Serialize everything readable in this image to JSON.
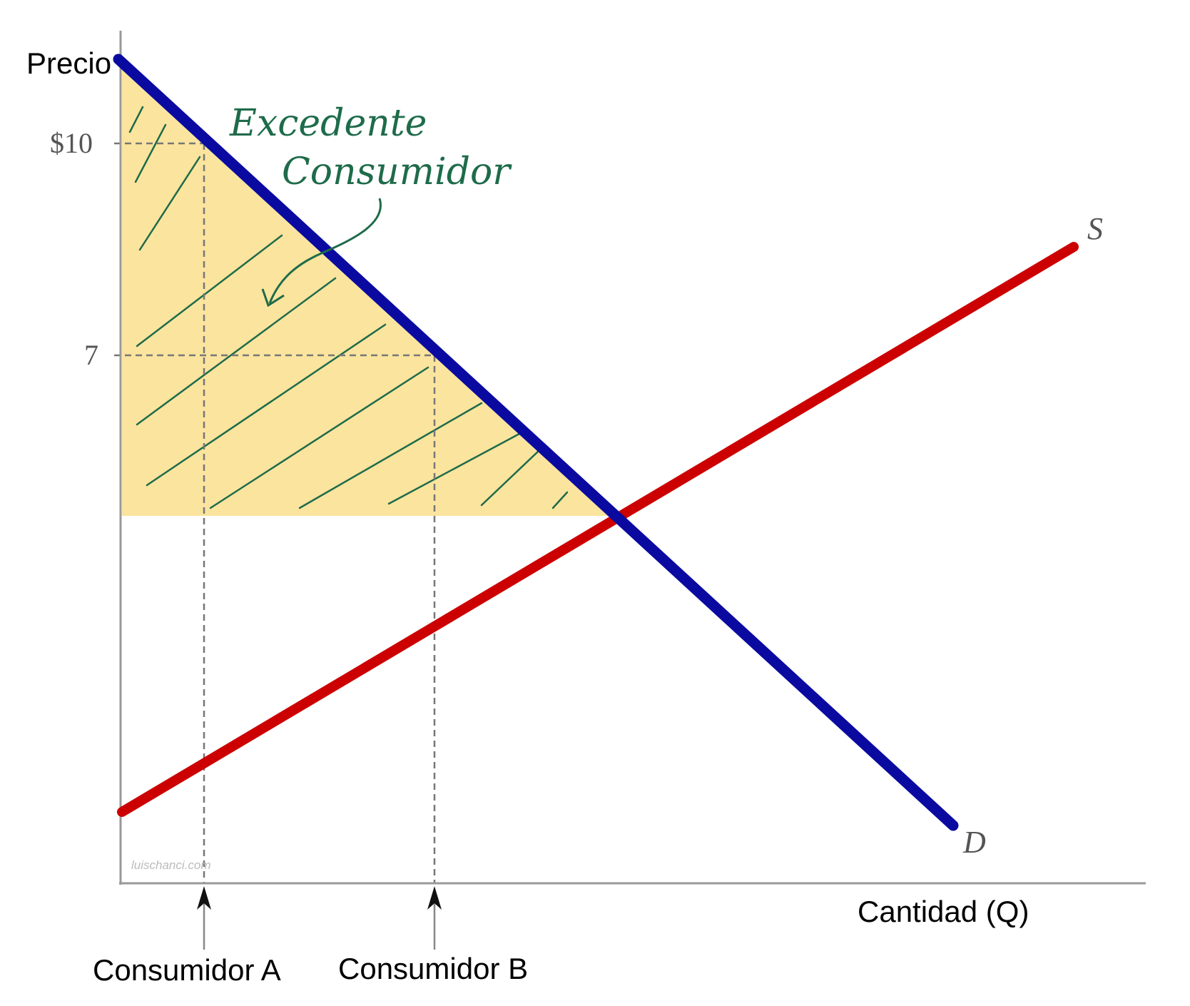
{
  "axes": {
    "y_label": "Precio",
    "x_label": "Cantidad (Q)",
    "y_ticks": [
      "$10",
      "7"
    ]
  },
  "curves": {
    "supply": "S",
    "demand": "D"
  },
  "annotation": {
    "line1": "Excedente",
    "line2": "Consumidor"
  },
  "consumers": [
    "Consumidor A",
    "Consumidor B"
  ],
  "watermark": "luischanci.com"
}
